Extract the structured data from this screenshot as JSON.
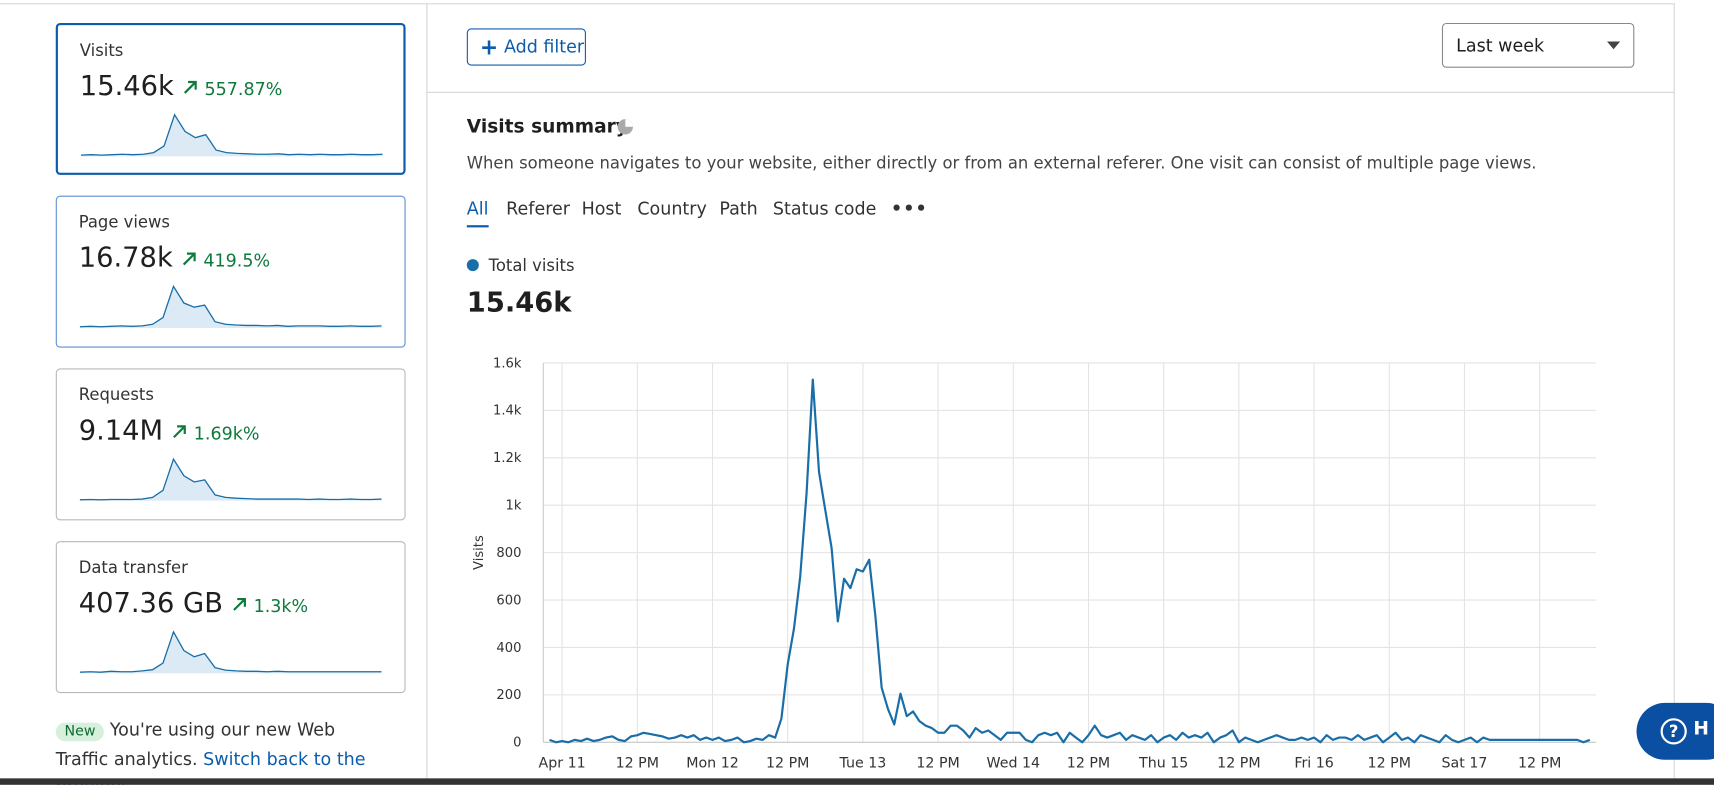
{
  "cards": [
    {
      "title": "Visits",
      "value": "15.46k",
      "change": "557.87%",
      "sparkline": [
        3,
        4,
        3,
        4,
        5,
        4,
        5,
        9,
        25,
        100,
        60,
        45,
        52,
        15,
        9,
        7,
        6,
        5,
        5,
        6,
        4,
        5,
        4,
        5,
        4,
        4,
        5,
        4,
        4,
        5
      ]
    },
    {
      "title": "Page views",
      "value": "16.78k",
      "change": "419.5%",
      "sparkline": [
        3,
        4,
        3,
        4,
        5,
        4,
        5,
        9,
        25,
        100,
        60,
        50,
        55,
        15,
        9,
        7,
        6,
        6,
        5,
        6,
        4,
        5,
        5,
        5,
        4,
        4,
        5,
        4,
        4,
        5
      ]
    },
    {
      "title": "Requests",
      "value": "9.14M",
      "change": "1.69k%",
      "sparkline": [
        2,
        3,
        2,
        3,
        3,
        3,
        4,
        8,
        25,
        100,
        60,
        45,
        50,
        14,
        8,
        6,
        5,
        4,
        4,
        4,
        4,
        4,
        3,
        4,
        3,
        3,
        4,
        3,
        3,
        4
      ]
    },
    {
      "title": "Data transfer",
      "value": "407.36 GB",
      "change": "1.3k%",
      "sparkline": [
        3,
        4,
        3,
        5,
        4,
        4,
        6,
        9,
        25,
        100,
        55,
        40,
        48,
        14,
        8,
        6,
        5,
        5,
        4,
        5,
        4,
        4,
        4,
        4,
        4,
        4,
        4,
        4,
        4,
        4
      ]
    }
  ],
  "notice": {
    "badge": "New",
    "text": "You're using our new Web Traffic analytics.",
    "link": "Switch back to the previous"
  },
  "toolbar": {
    "add_filter": "Add filter",
    "range": "Last week"
  },
  "summary": {
    "title": "Visits summary",
    "description": "When someone navigates to your website, either directly or from an external referer. One visit can consist of multiple page views.",
    "tabs": [
      "All",
      "Referer",
      "Host",
      "Country",
      "Path",
      "Status code"
    ],
    "legend": "Total visits",
    "total": "15.46k"
  },
  "help": "H",
  "chart_data": {
    "type": "line",
    "ylabel": "Visits",
    "color": "#1a6ea8",
    "grid": true,
    "xlim": [
      -3,
      165
    ],
    "ylim": [
      0,
      1600
    ],
    "yticks": [
      0,
      200,
      400,
      600,
      800,
      {
        "value": 1000,
        "label": "1k"
      },
      {
        "value": 1200,
        "label": "1.2k"
      },
      {
        "value": 1400,
        "label": "1.4k"
      },
      {
        "value": 1600,
        "label": "1.6k"
      }
    ],
    "xticks": [
      {
        "value": 0,
        "label": "Apr 11"
      },
      {
        "value": 12,
        "label": "12 PM"
      },
      {
        "value": 24,
        "label": "Mon 12"
      },
      {
        "value": 36,
        "label": "12 PM"
      },
      {
        "value": 48,
        "label": "Tue 13"
      },
      {
        "value": 60,
        "label": "12 PM"
      },
      {
        "value": 72,
        "label": "Wed 14"
      },
      {
        "value": 84,
        "label": "12 PM"
      },
      {
        "value": 96,
        "label": "Thu 15"
      },
      {
        "value": 108,
        "label": "12 PM"
      },
      {
        "value": 120,
        "label": "Fri 16"
      },
      {
        "value": 132,
        "label": "12 PM"
      },
      {
        "value": 144,
        "label": "Sat 17"
      },
      {
        "value": 156,
        "label": "12 PM"
      }
    ],
    "series": [
      {
        "name": "Total visits",
        "x": [
          -2,
          -1,
          0,
          1,
          2,
          3,
          4,
          5,
          6,
          7,
          8,
          9,
          10,
          11,
          12,
          13,
          14,
          15,
          16,
          17,
          18,
          19,
          20,
          21,
          22,
          23,
          24,
          25,
          26,
          27,
          28,
          29,
          30,
          31,
          32,
          33,
          34,
          35,
          36,
          37,
          38,
          39,
          40,
          41,
          42,
          43,
          44,
          45,
          46,
          47,
          48,
          49,
          50,
          51,
          52,
          53,
          54,
          55,
          56,
          57,
          58,
          59,
          60,
          61,
          62,
          63,
          64,
          65,
          66,
          67,
          68,
          69,
          70,
          71,
          72,
          73,
          74,
          75,
          76,
          77,
          78,
          79,
          80,
          81,
          82,
          83,
          84,
          85,
          86,
          87,
          88,
          89,
          90,
          91,
          92,
          93,
          94,
          95,
          96,
          97,
          98,
          99,
          100,
          101,
          102,
          103,
          104,
          105,
          106,
          107,
          108,
          109,
          110,
          111,
          112,
          113,
          114,
          115,
          116,
          117,
          118,
          119,
          120,
          121,
          122,
          123,
          124,
          125,
          126,
          127,
          128,
          129,
          130,
          131,
          132,
          133,
          134,
          135,
          136,
          137,
          138,
          139,
          140,
          141,
          142,
          143,
          144,
          145,
          146,
          147,
          148,
          149,
          150,
          151,
          152,
          153,
          154,
          155,
          156,
          157,
          158,
          159,
          160,
          161,
          162,
          163,
          164
        ],
        "values": [
          10,
          0,
          5,
          0,
          10,
          5,
          15,
          5,
          10,
          20,
          25,
          10,
          5,
          25,
          30,
          40,
          35,
          30,
          25,
          15,
          20,
          30,
          20,
          30,
          10,
          20,
          10,
          20,
          5,
          10,
          20,
          0,
          5,
          15,
          10,
          30,
          20,
          100,
          330,
          480,
          700,
          1050,
          1530,
          1140,
          980,
          820,
          510,
          690,
          650,
          730,
          720,
          770,
          530,
          230,
          140,
          75,
          205,
          110,
          130,
          90,
          70,
          60,
          40,
          40,
          70,
          70,
          50,
          20,
          60,
          40,
          50,
          30,
          10,
          40,
          40,
          40,
          10,
          0,
          30,
          40,
          30,
          40,
          0,
          40,
          20,
          0,
          30,
          70,
          30,
          20,
          30,
          40,
          10,
          30,
          20,
          10,
          30,
          0,
          20,
          30,
          10,
          40,
          20,
          30,
          20,
          40,
          0,
          20,
          30,
          50,
          0,
          20,
          10,
          0,
          10,
          20,
          30,
          20,
          10,
          10,
          20,
          10,
          20,
          0,
          30,
          10,
          20,
          20,
          10,
          30,
          10,
          20,
          30,
          0,
          20,
          40,
          10,
          20,
          0,
          30,
          20,
          10,
          0,
          30,
          10,
          0,
          10,
          20,
          0,
          20,
          10,
          10,
          10,
          10,
          10,
          10,
          10,
          10,
          10,
          10,
          10,
          10,
          10,
          10,
          10,
          0,
          10
        ]
      }
    ]
  }
}
